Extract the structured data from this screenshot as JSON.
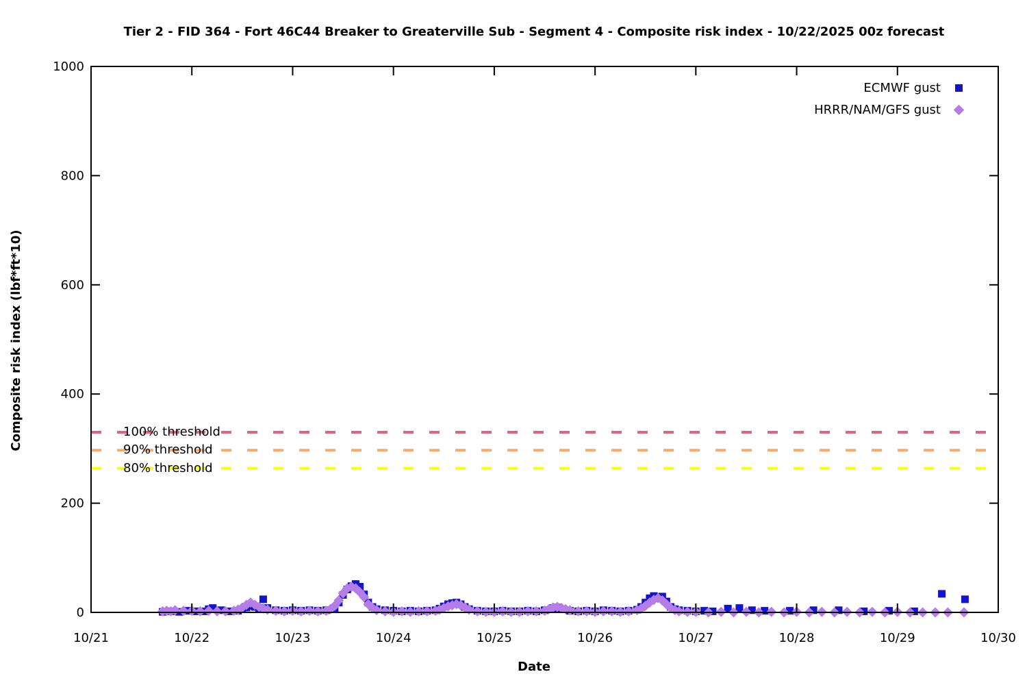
{
  "chart_data": {
    "type": "scatter",
    "title": "Tier 2 - FID 364 - Fort 46C44 Breaker to Greaterville Sub - Segment 4 - Composite risk index - 10/22/2025 00z forecast",
    "xlabel": "Date",
    "ylabel": "Composite risk index (lbf*ft*10)",
    "grid": false,
    "legend_position": "top-right-inside",
    "x_axis": {
      "unit": "days after 10/21 00z",
      "range": [
        0,
        9
      ],
      "tick_positions": [
        0,
        1,
        2,
        3,
        4,
        5,
        6,
        7,
        8,
        9
      ],
      "tick_labels": [
        "10/21",
        "10/22",
        "10/23",
        "10/24",
        "10/25",
        "10/26",
        "10/27",
        "10/28",
        "10/29",
        "10/30"
      ]
    },
    "y_axis": {
      "range": [
        0,
        1000
      ],
      "ticks": [
        0,
        200,
        400,
        600,
        800,
        1000
      ],
      "tick_labels": [
        "0",
        "200",
        "400",
        "600",
        "800",
        "1000"
      ]
    },
    "thresholds": [
      {
        "label": "100% threshold",
        "value": 330,
        "color": "#df6480"
      },
      {
        "label": "90% threshold",
        "value": 297,
        "color": "#f8ac6a"
      },
      {
        "label": "80% threshold",
        "value": 264,
        "color": "#ffff00"
      }
    ],
    "series": [
      {
        "name": "ECMWF gust",
        "marker": "square",
        "color": "#1414cc",
        "points": [
          [
            0.71,
            1
          ],
          [
            0.792,
            2
          ],
          [
            0.875,
            1
          ],
          [
            0.958,
            3
          ],
          [
            1.042,
            2
          ],
          [
            1.125,
            2
          ],
          [
            1.167,
            6
          ],
          [
            1.208,
            8
          ],
          [
            1.292,
            4
          ],
          [
            1.375,
            2
          ],
          [
            1.458,
            3
          ],
          [
            1.5,
            6
          ],
          [
            1.542,
            9
          ],
          [
            1.583,
            12
          ],
          [
            1.625,
            10
          ],
          [
            1.667,
            8
          ],
          [
            1.708,
            24
          ],
          [
            1.75,
            8
          ],
          [
            1.833,
            4
          ],
          [
            1.917,
            3
          ],
          [
            2.0,
            4
          ],
          [
            2.083,
            3
          ],
          [
            2.167,
            4
          ],
          [
            2.25,
            3
          ],
          [
            2.333,
            4
          ],
          [
            2.417,
            8
          ],
          [
            2.458,
            18
          ],
          [
            2.5,
            32
          ],
          [
            2.542,
            42
          ],
          [
            2.583,
            48
          ],
          [
            2.625,
            52
          ],
          [
            2.667,
            47
          ],
          [
            2.708,
            33
          ],
          [
            2.75,
            18
          ],
          [
            2.792,
            10
          ],
          [
            2.833,
            6
          ],
          [
            2.917,
            4
          ],
          [
            3.0,
            3
          ],
          [
            3.083,
            2
          ],
          [
            3.167,
            3
          ],
          [
            3.25,
            2
          ],
          [
            3.333,
            3
          ],
          [
            3.417,
            4
          ],
          [
            3.458,
            7
          ],
          [
            3.5,
            11
          ],
          [
            3.542,
            15
          ],
          [
            3.583,
            17
          ],
          [
            3.625,
            18
          ],
          [
            3.667,
            15
          ],
          [
            3.708,
            10
          ],
          [
            3.75,
            6
          ],
          [
            3.833,
            3
          ],
          [
            3.917,
            2
          ],
          [
            4.0,
            2
          ],
          [
            4.083,
            3
          ],
          [
            4.167,
            2
          ],
          [
            4.25,
            2
          ],
          [
            4.333,
            3
          ],
          [
            4.417,
            2
          ],
          [
            4.5,
            4
          ],
          [
            4.583,
            8
          ],
          [
            4.625,
            9
          ],
          [
            4.667,
            6
          ],
          [
            4.75,
            3
          ],
          [
            4.833,
            2
          ],
          [
            4.917,
            3
          ],
          [
            5.0,
            2
          ],
          [
            5.083,
            4
          ],
          [
            5.167,
            3
          ],
          [
            5.25,
            2
          ],
          [
            5.333,
            3
          ],
          [
            5.417,
            5
          ],
          [
            5.458,
            10
          ],
          [
            5.5,
            18
          ],
          [
            5.542,
            26
          ],
          [
            5.583,
            30
          ],
          [
            5.625,
            28
          ],
          [
            5.667,
            29
          ],
          [
            5.708,
            20
          ],
          [
            5.75,
            10
          ],
          [
            5.792,
            6
          ],
          [
            5.833,
            4
          ],
          [
            5.917,
            3
          ],
          [
            6.0,
            2
          ],
          [
            6.083,
            3
          ],
          [
            6.167,
            2
          ],
          [
            6.318,
            7
          ],
          [
            6.432,
            8
          ],
          [
            6.557,
            4
          ],
          [
            6.682,
            3
          ],
          [
            6.932,
            3
          ],
          [
            7.167,
            4
          ],
          [
            7.417,
            4
          ],
          [
            7.667,
            2
          ],
          [
            7.917,
            3
          ],
          [
            8.167,
            2
          ],
          [
            8.44,
            34
          ],
          [
            8.67,
            24
          ]
        ]
      },
      {
        "name": "HRRR/NAM/GFS gust",
        "marker": "diamond",
        "color": "#b57de8",
        "points": [
          [
            0.71,
            2
          ],
          [
            0.75,
            3
          ],
          [
            0.792,
            2
          ],
          [
            0.833,
            4
          ],
          [
            0.917,
            3
          ],
          [
            1.0,
            3
          ],
          [
            1.083,
            2
          ],
          [
            1.167,
            3
          ],
          [
            1.25,
            2
          ],
          [
            1.333,
            2
          ],
          [
            1.417,
            3
          ],
          [
            1.458,
            5
          ],
          [
            1.5,
            9
          ],
          [
            1.542,
            14
          ],
          [
            1.583,
            18
          ],
          [
            1.625,
            14
          ],
          [
            1.667,
            10
          ],
          [
            1.708,
            7
          ],
          [
            1.75,
            5
          ],
          [
            1.833,
            3
          ],
          [
            1.917,
            2
          ],
          [
            2.0,
            3
          ],
          [
            2.083,
            2
          ],
          [
            2.167,
            3
          ],
          [
            2.25,
            2
          ],
          [
            2.333,
            3
          ],
          [
            2.375,
            6
          ],
          [
            2.417,
            12
          ],
          [
            2.458,
            22
          ],
          [
            2.5,
            35
          ],
          [
            2.542,
            44
          ],
          [
            2.583,
            47
          ],
          [
            2.625,
            44
          ],
          [
            2.667,
            37
          ],
          [
            2.708,
            28
          ],
          [
            2.75,
            15
          ],
          [
            2.792,
            8
          ],
          [
            2.833,
            4
          ],
          [
            2.917,
            2
          ],
          [
            3.0,
            1
          ],
          [
            3.083,
            2
          ],
          [
            3.167,
            1
          ],
          [
            3.25,
            2
          ],
          [
            3.333,
            2
          ],
          [
            3.417,
            3
          ],
          [
            3.458,
            5
          ],
          [
            3.5,
            8
          ],
          [
            3.542,
            11
          ],
          [
            3.583,
            13
          ],
          [
            3.625,
            15
          ],
          [
            3.667,
            13
          ],
          [
            3.708,
            9
          ],
          [
            3.75,
            5
          ],
          [
            3.833,
            2
          ],
          [
            3.917,
            1
          ],
          [
            4.0,
            1
          ],
          [
            4.083,
            2
          ],
          [
            4.167,
            1
          ],
          [
            4.25,
            1
          ],
          [
            4.333,
            2
          ],
          [
            4.417,
            2
          ],
          [
            4.5,
            3
          ],
          [
            4.542,
            6
          ],
          [
            4.583,
            9
          ],
          [
            4.625,
            10
          ],
          [
            4.667,
            8
          ],
          [
            4.708,
            6
          ],
          [
            4.75,
            4
          ],
          [
            4.833,
            2
          ],
          [
            4.917,
            2
          ],
          [
            5.0,
            1
          ],
          [
            5.083,
            2
          ],
          [
            5.167,
            2
          ],
          [
            5.25,
            1
          ],
          [
            5.333,
            2
          ],
          [
            5.417,
            4
          ],
          [
            5.458,
            7
          ],
          [
            5.5,
            12
          ],
          [
            5.542,
            18
          ],
          [
            5.583,
            23
          ],
          [
            5.625,
            26
          ],
          [
            5.667,
            22
          ],
          [
            5.708,
            15
          ],
          [
            5.75,
            8
          ],
          [
            5.792,
            4
          ],
          [
            5.833,
            2
          ],
          [
            5.917,
            1
          ],
          [
            6.0,
            1
          ],
          [
            6.125,
            0
          ],
          [
            6.25,
            1
          ],
          [
            6.375,
            0
          ],
          [
            6.5,
            1
          ],
          [
            6.625,
            0
          ],
          [
            6.75,
            1
          ],
          [
            6.875,
            0
          ],
          [
            7.0,
            1
          ],
          [
            7.125,
            0
          ],
          [
            7.25,
            1
          ],
          [
            7.375,
            0
          ],
          [
            7.5,
            1
          ],
          [
            7.625,
            0
          ],
          [
            7.75,
            1
          ],
          [
            7.875,
            0
          ],
          [
            8.0,
            1
          ],
          [
            8.125,
            0
          ],
          [
            8.25,
            0
          ],
          [
            8.375,
            0
          ],
          [
            8.5,
            0
          ],
          [
            8.66,
            0
          ]
        ]
      }
    ]
  }
}
